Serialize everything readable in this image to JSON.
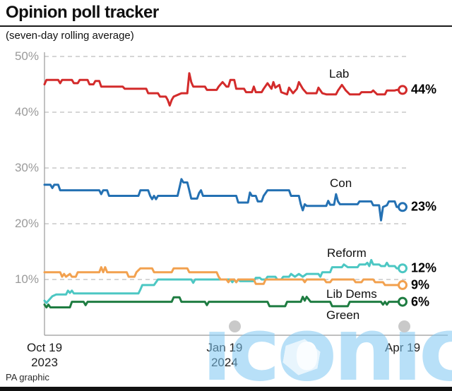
{
  "header": {
    "title": "Opinion poll tracker",
    "subtitle": "(seven-day rolling average)"
  },
  "footer": {
    "credit": "PA graphic"
  },
  "watermark": {
    "text": "iconic"
  },
  "colors": {
    "lab": "#d32b2b",
    "con": "#2471b3",
    "reform": "#4cc7c3",
    "libdem": "#f2a14f",
    "green": "#1e7c41"
  },
  "chart_data": {
    "type": "line",
    "title": "Opinion poll tracker",
    "subtitle": "(seven-day rolling average)",
    "x_range_days": [
      0,
      183
    ],
    "x_ticks": [
      {
        "day": 0,
        "line1": "Oct 19",
        "line2": "2023"
      },
      {
        "day": 92,
        "line1": "Jan 19",
        "line2": "2024"
      },
      {
        "day": 183,
        "line1": "Apr 19",
        "line2": ""
      }
    ],
    "y_ticks": [
      {
        "value": 50,
        "label": "50%"
      },
      {
        "value": 40,
        "label": "40%"
      },
      {
        "value": 30,
        "label": "30%"
      },
      {
        "value": 20,
        "label": "20%"
      },
      {
        "value": 10,
        "label": "10%"
      }
    ],
    "ylim": [
      0,
      52
    ],
    "grid": "horizontal-dashed",
    "legend": "inline-labels",
    "series": [
      {
        "name": "Lab",
        "color": "#d32b2b",
        "end_value": 44,
        "end_label": "44%",
        "points": [
          [
            0,
            45
          ],
          [
            1,
            45.8
          ],
          [
            7,
            45.8
          ],
          [
            8,
            45.2
          ],
          [
            9,
            45.8
          ],
          [
            14,
            45.8
          ],
          [
            15,
            45.2
          ],
          [
            17,
            45.2
          ],
          [
            18,
            45.8
          ],
          [
            22,
            45.8
          ],
          [
            23,
            45
          ],
          [
            25,
            45
          ],
          [
            26,
            45.6
          ],
          [
            28,
            45.6
          ],
          [
            29,
            44.6
          ],
          [
            40,
            44.6
          ],
          [
            41,
            44.2
          ],
          [
            52,
            44.2
          ],
          [
            53,
            43.4
          ],
          [
            58,
            43.4
          ],
          [
            59,
            42.8
          ],
          [
            62,
            42.8
          ],
          [
            63,
            42.2
          ],
          [
            64,
            41.2
          ],
          [
            65,
            42.2
          ],
          [
            66,
            42.8
          ],
          [
            70,
            43.4
          ],
          [
            73,
            43.4
          ],
          [
            74,
            47
          ],
          [
            75,
            45.4
          ],
          [
            76,
            44.6
          ],
          [
            82,
            44.6
          ],
          [
            83,
            44
          ],
          [
            88,
            44
          ],
          [
            89,
            44.6
          ],
          [
            91,
            45.4
          ],
          [
            93,
            44.6
          ],
          [
            94,
            44.6
          ],
          [
            95,
            45.8
          ],
          [
            97,
            45.8
          ],
          [
            98,
            44.2
          ],
          [
            102,
            44.2
          ],
          [
            103,
            43.6
          ],
          [
            106,
            43.6
          ],
          [
            107,
            44.6
          ],
          [
            108,
            43.6
          ],
          [
            111,
            43.6
          ],
          [
            112,
            44.2
          ],
          [
            114,
            45.2
          ],
          [
            116,
            44.2
          ],
          [
            117,
            45.4
          ],
          [
            118,
            44.4
          ],
          [
            120,
            44.9
          ],
          [
            121,
            43.6
          ],
          [
            124,
            43.2
          ],
          [
            125,
            44.4
          ],
          [
            127,
            43.4
          ],
          [
            129,
            44.2
          ],
          [
            130,
            45.4
          ],
          [
            132,
            44.2
          ],
          [
            134,
            43.4
          ],
          [
            139,
            43.4
          ],
          [
            140,
            44.4
          ],
          [
            142,
            43.4
          ],
          [
            144,
            43.2
          ],
          [
            149,
            43.2
          ],
          [
            150,
            43.9
          ],
          [
            152,
            44.9
          ],
          [
            154,
            43.9
          ],
          [
            156,
            43.2
          ],
          [
            161,
            43.2
          ],
          [
            162,
            43.6
          ],
          [
            167,
            43.6
          ],
          [
            168,
            43.9
          ],
          [
            170,
            43.2
          ],
          [
            174,
            43.2
          ],
          [
            175,
            43.9
          ],
          [
            179,
            43.9
          ],
          [
            180,
            44
          ],
          [
            183,
            44
          ]
        ]
      },
      {
        "name": "Con",
        "color": "#2471b3",
        "end_value": 23,
        "end_label": "23%",
        "points": [
          [
            0,
            27
          ],
          [
            3,
            27
          ],
          [
            4,
            26.4
          ],
          [
            5,
            27
          ],
          [
            7,
            27
          ],
          [
            8,
            26
          ],
          [
            28,
            26
          ],
          [
            29,
            25.3
          ],
          [
            30,
            26
          ],
          [
            32,
            26
          ],
          [
            33,
            25
          ],
          [
            48,
            25
          ],
          [
            49,
            26
          ],
          [
            53,
            26
          ],
          [
            54,
            25
          ],
          [
            55,
            24.4
          ],
          [
            56,
            25
          ],
          [
            57,
            24.4
          ],
          [
            58,
            25
          ],
          [
            68,
            25
          ],
          [
            69,
            26.5
          ],
          [
            70,
            28
          ],
          [
            71,
            27.4
          ],
          [
            73,
            27.4
          ],
          [
            74,
            26
          ],
          [
            75,
            24.5
          ],
          [
            78,
            24.5
          ],
          [
            79,
            25.5
          ],
          [
            80,
            26
          ],
          [
            81,
            25
          ],
          [
            85,
            25
          ],
          [
            98,
            25
          ],
          [
            99,
            23.8
          ],
          [
            104,
            23.8
          ],
          [
            105,
            25.6
          ],
          [
            106,
            25
          ],
          [
            108,
            25
          ],
          [
            109,
            24
          ],
          [
            111,
            24
          ],
          [
            112,
            25
          ],
          [
            114,
            26
          ],
          [
            125,
            26
          ],
          [
            126,
            25
          ],
          [
            130,
            25
          ],
          [
            131,
            23.5
          ],
          [
            132,
            22.4
          ],
          [
            133,
            23.5
          ],
          [
            134,
            23.2
          ],
          [
            144,
            23.2
          ],
          [
            145,
            24.1
          ],
          [
            146,
            23.4
          ],
          [
            148,
            23.4
          ],
          [
            149,
            25.3
          ],
          [
            150,
            24
          ],
          [
            151,
            23.5
          ],
          [
            160,
            23.5
          ],
          [
            161,
            24
          ],
          [
            167,
            24
          ],
          [
            168,
            23.3
          ],
          [
            171,
            23.3
          ],
          [
            172,
            20.6
          ],
          [
            173,
            23
          ],
          [
            175,
            23.3
          ],
          [
            176,
            24
          ],
          [
            179,
            24
          ],
          [
            180,
            23
          ],
          [
            183,
            23
          ]
        ]
      },
      {
        "name": "Reform",
        "color": "#4cc7c3",
        "end_value": 12,
        "end_label": "12%",
        "points": [
          [
            0,
            6.2
          ],
          [
            1,
            5.8
          ],
          [
            2,
            6.2
          ],
          [
            4,
            7
          ],
          [
            6,
            7.3
          ],
          [
            11,
            7.3
          ],
          [
            12,
            8
          ],
          [
            13,
            7.6
          ],
          [
            14,
            8
          ],
          [
            15,
            7.5
          ],
          [
            48,
            7.5
          ],
          [
            49,
            8.2
          ],
          [
            50,
            9
          ],
          [
            56,
            9
          ],
          [
            57,
            9.5
          ],
          [
            58,
            10
          ],
          [
            75,
            10
          ],
          [
            76,
            9.4
          ],
          [
            77,
            10
          ],
          [
            95,
            10
          ],
          [
            96,
            9.5
          ],
          [
            97,
            10
          ],
          [
            98,
            9.5
          ],
          [
            99,
            10
          ],
          [
            100,
            9.7
          ],
          [
            107,
            9.7
          ],
          [
            108,
            10.3
          ],
          [
            110,
            10.3
          ],
          [
            111,
            10
          ],
          [
            113,
            10
          ],
          [
            114,
            10.5
          ],
          [
            118,
            10.5
          ],
          [
            119,
            10
          ],
          [
            121,
            10
          ],
          [
            122,
            10.5
          ],
          [
            125,
            10.5
          ],
          [
            126,
            11
          ],
          [
            128,
            10.5
          ],
          [
            130,
            11
          ],
          [
            132,
            10.5
          ],
          [
            134,
            11
          ],
          [
            140,
            11
          ],
          [
            141,
            10.5
          ],
          [
            142,
            11.3
          ],
          [
            146,
            11.3
          ],
          [
            147,
            12.2
          ],
          [
            152,
            12.2
          ],
          [
            153,
            12.7
          ],
          [
            155,
            12.2
          ],
          [
            160,
            12.2
          ],
          [
            161,
            12.7
          ],
          [
            164,
            12.7
          ],
          [
            165,
            13
          ],
          [
            166,
            12.4
          ],
          [
            167,
            13.5
          ],
          [
            168,
            12.7
          ],
          [
            171,
            12.7
          ],
          [
            172,
            12.4
          ],
          [
            174,
            12.4
          ],
          [
            175,
            13
          ],
          [
            176,
            12.4
          ],
          [
            179,
            12.4
          ],
          [
            180,
            12
          ],
          [
            183,
            12
          ]
        ]
      },
      {
        "name": "Lib Dems",
        "color": "#f2a14f",
        "end_value": 9,
        "end_label": "9%",
        "points": [
          [
            0,
            11.3
          ],
          [
            8,
            11.3
          ],
          [
            9,
            10.5
          ],
          [
            10,
            11
          ],
          [
            11,
            10.5
          ],
          [
            13,
            11
          ],
          [
            14,
            10.5
          ],
          [
            16,
            10.5
          ],
          [
            17,
            11.3
          ],
          [
            28,
            11.3
          ],
          [
            29,
            12.2
          ],
          [
            30,
            11.3
          ],
          [
            31,
            12.2
          ],
          [
            32,
            11.3
          ],
          [
            42,
            11.3
          ],
          [
            43,
            10.5
          ],
          [
            46,
            10.5
          ],
          [
            47,
            11.3
          ],
          [
            49,
            12
          ],
          [
            55,
            12
          ],
          [
            56,
            11.3
          ],
          [
            65,
            11.3
          ],
          [
            66,
            12
          ],
          [
            73,
            12
          ],
          [
            74,
            11.3
          ],
          [
            88,
            11.3
          ],
          [
            89,
            10.5
          ],
          [
            90,
            10
          ],
          [
            93,
            10
          ],
          [
            94,
            9.5
          ],
          [
            95,
            10
          ],
          [
            97,
            10
          ],
          [
            98,
            9.5
          ],
          [
            99,
            10
          ],
          [
            107,
            10
          ],
          [
            108,
            9.2
          ],
          [
            112,
            9.2
          ],
          [
            113,
            10
          ],
          [
            132,
            10
          ],
          [
            133,
            9.5
          ],
          [
            134,
            10
          ],
          [
            143,
            10
          ],
          [
            144,
            9.5
          ],
          [
            146,
            9.5
          ],
          [
            147,
            10
          ],
          [
            158,
            10
          ],
          [
            159,
            9.5
          ],
          [
            162,
            9.5
          ],
          [
            163,
            10
          ],
          [
            168,
            10
          ],
          [
            169,
            9.5
          ],
          [
            173,
            9.5
          ],
          [
            174,
            9
          ],
          [
            183,
            9
          ]
        ]
      },
      {
        "name": "Green",
        "color": "#1e7c41",
        "end_value": 6,
        "end_label": "6%",
        "points": [
          [
            0,
            5.5
          ],
          [
            1,
            5
          ],
          [
            2,
            5.5
          ],
          [
            3,
            5
          ],
          [
            13,
            5
          ],
          [
            14,
            6
          ],
          [
            20,
            6
          ],
          [
            21,
            5.4
          ],
          [
            22,
            6
          ],
          [
            65,
            6
          ],
          [
            66,
            6.8
          ],
          [
            69,
            6.8
          ],
          [
            70,
            6
          ],
          [
            82,
            6
          ],
          [
            83,
            5.4
          ],
          [
            84,
            6
          ],
          [
            114,
            6
          ],
          [
            115,
            5.2
          ],
          [
            123,
            5.2
          ],
          [
            124,
            6
          ],
          [
            131,
            6
          ],
          [
            132,
            6.9
          ],
          [
            133,
            6.2
          ],
          [
            134,
            6.9
          ],
          [
            136,
            6
          ],
          [
            146,
            6
          ],
          [
            147,
            5.2
          ],
          [
            155,
            5.2
          ],
          [
            156,
            6
          ],
          [
            172,
            6
          ],
          [
            173,
            5.5
          ],
          [
            174,
            6
          ],
          [
            175,
            5.5
          ],
          [
            176,
            6
          ],
          [
            183,
            6
          ]
        ]
      }
    ]
  }
}
